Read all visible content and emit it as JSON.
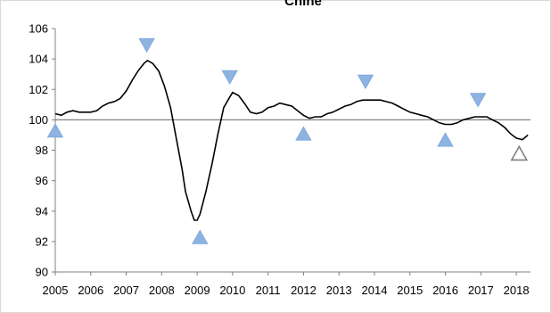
{
  "chart_data": {
    "type": "line",
    "title": "Chine",
    "xlabel": "",
    "ylabel": "",
    "xlim": [
      2005.0,
      2018.4
    ],
    "ylim": [
      90,
      106
    ],
    "y_ticks": [
      90,
      92,
      94,
      96,
      98,
      100,
      102,
      104,
      106
    ],
    "x_ticks": [
      "2005",
      "2006",
      "2007",
      "2008",
      "2009",
      "2010",
      "2011",
      "2012",
      "2013",
      "2014",
      "2015",
      "2016",
      "2017",
      "2018"
    ],
    "reference_line": 100,
    "grid": false,
    "legend": "none",
    "colors": {
      "series": "#000000",
      "marker_fill": "#8db3e2",
      "open_marker": "#808080",
      "reference": "#808080"
    },
    "series": [
      {
        "values": [
          [
            2005.0,
            100.4
          ],
          [
            2005.17,
            100.3
          ],
          [
            2005.33,
            100.5
          ],
          [
            2005.5,
            100.6
          ],
          [
            2005.67,
            100.5
          ],
          [
            2005.83,
            100.5
          ],
          [
            2006.0,
            100.5
          ],
          [
            2006.17,
            100.6
          ],
          [
            2006.33,
            100.9
          ],
          [
            2006.5,
            101.1
          ],
          [
            2006.67,
            101.2
          ],
          [
            2006.83,
            101.4
          ],
          [
            2007.0,
            101.9
          ],
          [
            2007.17,
            102.6
          ],
          [
            2007.33,
            103.2
          ],
          [
            2007.5,
            103.7
          ],
          [
            2007.6,
            103.9
          ],
          [
            2007.75,
            103.7
          ],
          [
            2007.92,
            103.2
          ],
          [
            2008.08,
            102.2
          ],
          [
            2008.25,
            100.8
          ],
          [
            2008.42,
            98.7
          ],
          [
            2008.58,
            96.7
          ],
          [
            2008.67,
            95.3
          ],
          [
            2008.83,
            94.0
          ],
          [
            2008.92,
            93.4
          ],
          [
            2009.0,
            93.4
          ],
          [
            2009.08,
            93.8
          ],
          [
            2009.25,
            95.3
          ],
          [
            2009.42,
            97.1
          ],
          [
            2009.58,
            99.0
          ],
          [
            2009.75,
            100.8
          ],
          [
            2009.92,
            101.5
          ],
          [
            2010.0,
            101.8
          ],
          [
            2010.17,
            101.6
          ],
          [
            2010.33,
            101.1
          ],
          [
            2010.5,
            100.5
          ],
          [
            2010.67,
            100.4
          ],
          [
            2010.83,
            100.5
          ],
          [
            2011.0,
            100.8
          ],
          [
            2011.17,
            100.9
          ],
          [
            2011.33,
            101.1
          ],
          [
            2011.5,
            101.0
          ],
          [
            2011.67,
            100.9
          ],
          [
            2011.83,
            100.6
          ],
          [
            2012.0,
            100.3
          ],
          [
            2012.17,
            100.1
          ],
          [
            2012.33,
            100.2
          ],
          [
            2012.5,
            100.2
          ],
          [
            2012.67,
            100.4
          ],
          [
            2012.83,
            100.5
          ],
          [
            2013.0,
            100.7
          ],
          [
            2013.17,
            100.9
          ],
          [
            2013.33,
            101.0
          ],
          [
            2013.5,
            101.2
          ],
          [
            2013.67,
            101.3
          ],
          [
            2013.83,
            101.3
          ],
          [
            2014.0,
            101.3
          ],
          [
            2014.17,
            101.3
          ],
          [
            2014.33,
            101.2
          ],
          [
            2014.5,
            101.1
          ],
          [
            2014.67,
            100.9
          ],
          [
            2014.83,
            100.7
          ],
          [
            2015.0,
            100.5
          ],
          [
            2015.17,
            100.4
          ],
          [
            2015.33,
            100.3
          ],
          [
            2015.5,
            100.2
          ],
          [
            2015.67,
            100.0
          ],
          [
            2015.83,
            99.8
          ],
          [
            2016.0,
            99.7
          ],
          [
            2016.17,
            99.7
          ],
          [
            2016.33,
            99.8
          ],
          [
            2016.5,
            100.0
          ],
          [
            2016.67,
            100.1
          ],
          [
            2016.83,
            100.2
          ],
          [
            2017.0,
            100.2
          ],
          [
            2017.17,
            100.2
          ],
          [
            2017.33,
            100.0
          ],
          [
            2017.5,
            99.8
          ],
          [
            2017.67,
            99.5
          ],
          [
            2017.83,
            99.1
          ],
          [
            2018.0,
            98.8
          ],
          [
            2018.17,
            98.7
          ],
          [
            2018.33,
            99.0
          ]
        ]
      }
    ],
    "markers": [
      {
        "kind": "trough",
        "x": 2005.0,
        "y": 99.3,
        "filled": true
      },
      {
        "kind": "peak",
        "x": 2007.58,
        "y": 104.9,
        "filled": true
      },
      {
        "kind": "trough",
        "x": 2009.08,
        "y": 92.3,
        "filled": true
      },
      {
        "kind": "peak",
        "x": 2009.92,
        "y": 102.8,
        "filled": true
      },
      {
        "kind": "trough",
        "x": 2012.0,
        "y": 99.1,
        "filled": true
      },
      {
        "kind": "peak",
        "x": 2013.75,
        "y": 102.5,
        "filled": true
      },
      {
        "kind": "trough",
        "x": 2016.0,
        "y": 98.7,
        "filled": true
      },
      {
        "kind": "peak",
        "x": 2016.92,
        "y": 101.3,
        "filled": true
      },
      {
        "kind": "trough",
        "x": 2018.08,
        "y": 97.8,
        "filled": false
      }
    ]
  }
}
